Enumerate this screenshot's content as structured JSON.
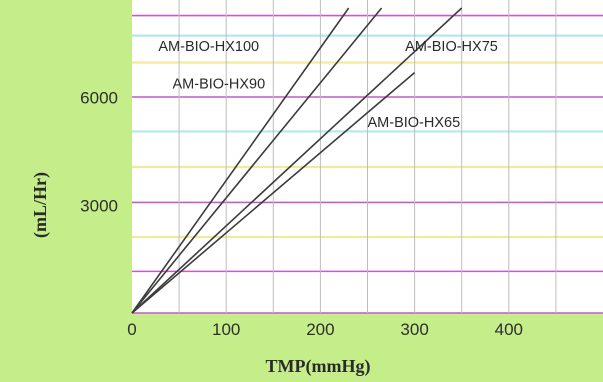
{
  "colors": {
    "page_background": "#c5ee8b",
    "plot_background": "#ffffff",
    "curve": "#3c3c3c",
    "vertical_grid": "#bdbdbd",
    "band_cyan": "#b4e7f3",
    "band_yellow": "#f2ea96",
    "band_magenta": "#c45cc6"
  },
  "chart_data": {
    "type": "line",
    "title": "",
    "xlabel": "TMP(mmHg)",
    "ylabel": "(mL/Hr)",
    "xlim": [
      0,
      500
    ],
    "ylim": [
      0,
      8500
    ],
    "xticks": [
      0,
      100,
      200,
      300,
      400
    ],
    "xtick_labels": [
      "0",
      "100",
      "200",
      "300",
      "400"
    ],
    "yticks": [
      3000,
      6000
    ],
    "ytick_labels": [
      "3000",
      "6000"
    ],
    "grid": true,
    "legend": "none",
    "series": [
      {
        "name": "AM-BIO-HX100",
        "x": [
          0,
          230
        ],
        "y": [
          0,
          8500
        ]
      },
      {
        "name": "AM-BIO-HX90",
        "x": [
          0,
          265
        ],
        "y": [
          0,
          8500
        ]
      },
      {
        "name": "AM-BIO-HX75",
        "x": [
          0,
          350
        ],
        "y": [
          0,
          8500
        ]
      },
      {
        "name": "AM-BIO-HX65",
        "x": [
          0,
          300
        ],
        "y": [
          0,
          6700
        ]
      }
    ],
    "annotations": [
      {
        "text": "AM-BIO-HX100",
        "x": 28,
        "y": 7300
      },
      {
        "text": "AM-BIO-HX90",
        "x": 43,
        "y": 6250
      },
      {
        "text": "AM-BIO-HX75",
        "x": 290,
        "y": 7300
      },
      {
        "text": "AM-BIO-HX65",
        "x": 250,
        "y": 5180
      }
    ],
    "bands": [
      {
        "y": 8290,
        "color": "magenta"
      },
      {
        "y": 7730,
        "color": "cyan"
      },
      {
        "y": 6980,
        "color": "yellow"
      },
      {
        "y": 6020,
        "color": "magenta"
      },
      {
        "y": 5060,
        "color": "cyan"
      },
      {
        "y": 4070,
        "color": "yellow"
      },
      {
        "y": 3080,
        "color": "magenta"
      },
      {
        "y": 2120,
        "color": "yellow"
      },
      {
        "y": 1160,
        "color": "magenta"
      }
    ]
  }
}
